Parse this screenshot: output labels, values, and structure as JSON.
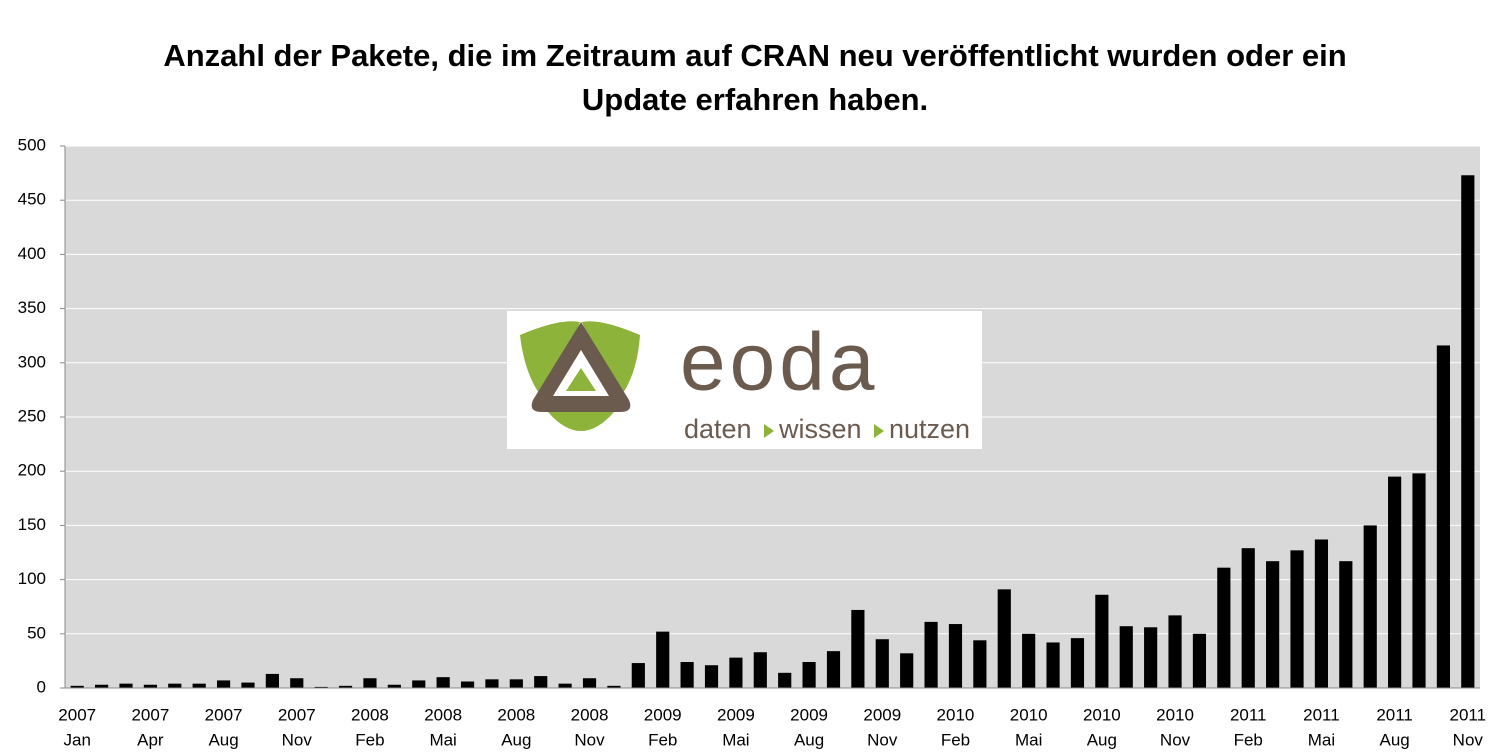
{
  "chart_data": {
    "type": "bar",
    "title": "Anzahl der Pakete, die im Zeitraum auf CRAN neu veröffentlicht wurden oder ein Update erfahren haben.",
    "categories": [
      [
        "2007",
        "Jan"
      ],
      null,
      null,
      [
        "2007",
        "Apr"
      ],
      null,
      null,
      [
        "2007",
        "Aug"
      ],
      null,
      null,
      [
        "2007",
        "Nov"
      ],
      null,
      null,
      [
        "2008",
        "Feb"
      ],
      null,
      null,
      [
        "2008",
        "Mai"
      ],
      null,
      null,
      [
        "2008",
        "Aug"
      ],
      null,
      null,
      [
        "2008",
        "Nov"
      ],
      null,
      null,
      [
        "2009",
        "Feb"
      ],
      null,
      null,
      [
        "2009",
        "Mai"
      ],
      null,
      null,
      [
        "2009",
        "Aug"
      ],
      null,
      null,
      [
        "2009",
        "Nov"
      ],
      null,
      null,
      [
        "2010",
        "Feb"
      ],
      null,
      null,
      [
        "2010",
        "Mai"
      ],
      null,
      null,
      [
        "2010",
        "Aug"
      ],
      null,
      null,
      [
        "2010",
        "Nov"
      ],
      null,
      null,
      [
        "2011",
        "Feb"
      ],
      null,
      null,
      [
        "2011",
        "Mai"
      ],
      null,
      null,
      [
        "2011",
        "Aug"
      ],
      null,
      null,
      [
        "2011",
        "Nov"
      ]
    ],
    "values": [
      2,
      3,
      4,
      3,
      4,
      4,
      7,
      5,
      13,
      9,
      1,
      2,
      9,
      3,
      7,
      10,
      6,
      8,
      8,
      11,
      4,
      9,
      2,
      23,
      52,
      24,
      21,
      28,
      33,
      14,
      24,
      34,
      72,
      45,
      32,
      61,
      59,
      44,
      91,
      50,
      42,
      46,
      86,
      57,
      56,
      67,
      50,
      111,
      129,
      117,
      127,
      137,
      117,
      150,
      195,
      198,
      316,
      473
    ],
    "color": "#000000",
    "ylim": [
      0,
      500
    ],
    "yticks": [
      0,
      50,
      100,
      150,
      200,
      250,
      300,
      350,
      400,
      450,
      500
    ],
    "grid": true
  },
  "logo": {
    "name": "eoda",
    "tagline": [
      "daten",
      "wissen",
      "nutzen"
    ]
  }
}
